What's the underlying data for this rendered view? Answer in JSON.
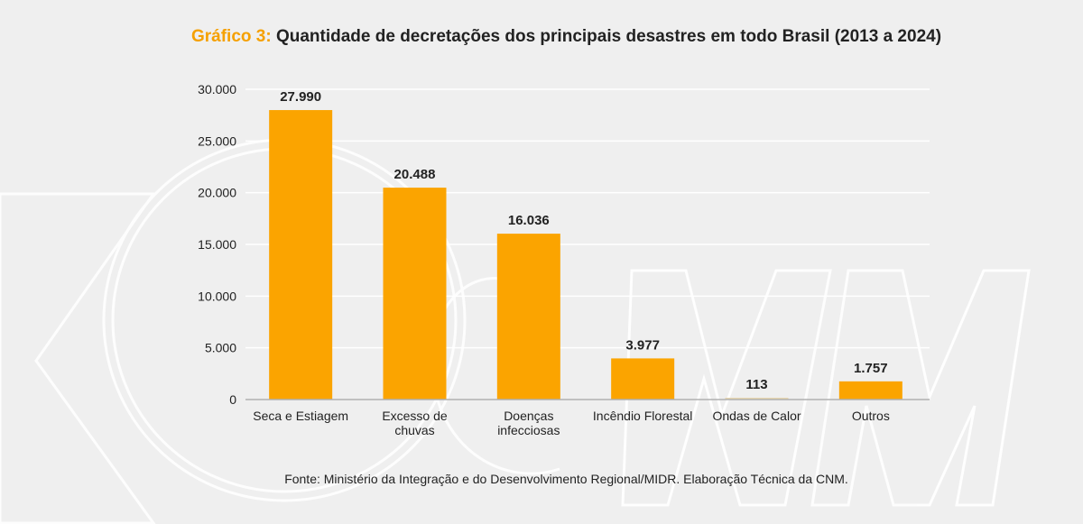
{
  "title": {
    "prefix": "Gráfico 3:",
    "text": "Quantidade de decretações dos principais desastres em todo Brasil (2013 a 2024)"
  },
  "source": "Fonte: Ministério da Integração e do Desenvolvimento Regional/MIDR. Elaboração Técnica da CNM.",
  "colors": {
    "bar": "#fba400",
    "bar_small": "#e8d6b0",
    "grid": "#ffffff",
    "axis": "#b0b0b0"
  },
  "chart_data": {
    "type": "bar",
    "title": "Quantidade de decretações dos principais desastres em todo Brasil (2013 a 2024)",
    "categories": [
      [
        "Seca e Estiagem"
      ],
      [
        "Excesso de",
        "chuvas"
      ],
      [
        "Doenças",
        "infecciosas"
      ],
      [
        "Incêndio Florestal"
      ],
      [
        "Ondas de Calor"
      ],
      [
        "Outros"
      ]
    ],
    "values": [
      27990,
      20488,
      16036,
      3977,
      113,
      1757
    ],
    "value_labels": [
      "27.990",
      "20.488",
      "16.036",
      "3.977",
      "113",
      "1.757"
    ],
    "yticks": [
      0,
      5000,
      10000,
      15000,
      20000,
      25000,
      30000
    ],
    "ytick_labels": [
      "0",
      "5.000",
      "10.000",
      "15.000",
      "20.000",
      "25.000",
      "30.000"
    ],
    "ylim": [
      0,
      30000
    ],
    "xlabel": "",
    "ylabel": "",
    "grid": true
  }
}
